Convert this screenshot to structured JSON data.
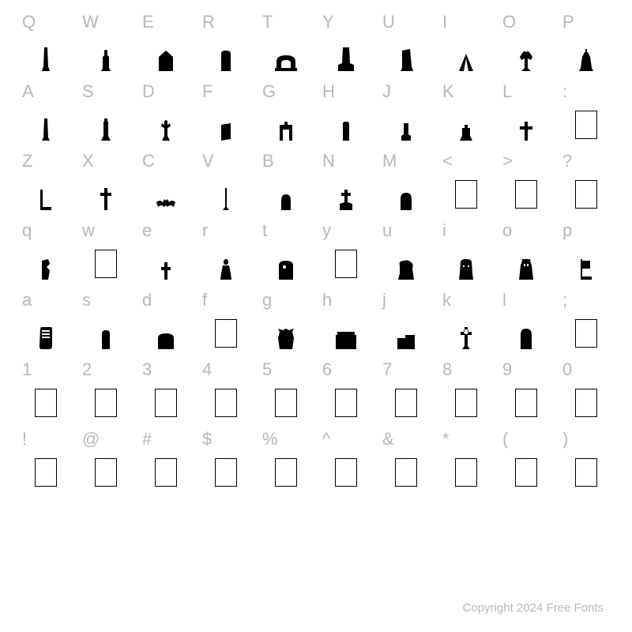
{
  "footer_text": "Copyright 2024 Free Fonts",
  "rows": [
    {
      "type": "label",
      "chars": [
        "Q",
        "W",
        "E",
        "R",
        "T",
        "Y",
        "U",
        "I",
        "O",
        "P"
      ]
    },
    {
      "type": "glyph",
      "glyphs": [
        "obelisk",
        "figure",
        "house",
        "tablet",
        "arch",
        "monument",
        "leaning",
        "tent",
        "angel",
        "bell"
      ]
    },
    {
      "type": "label",
      "chars": [
        "A",
        "S",
        "D",
        "F",
        "G",
        "H",
        "J",
        "K",
        "L",
        ":"
      ]
    },
    {
      "type": "glyph",
      "glyphs": [
        "pillar",
        "column",
        "statue",
        "book",
        "gate",
        "slab",
        "pedestal",
        "base",
        "cross-arm",
        "empty"
      ]
    },
    {
      "type": "label",
      "chars": [
        "Z",
        "X",
        "C",
        "V",
        "B",
        "N",
        "M",
        "<",
        ">",
        "?"
      ]
    },
    {
      "type": "glyph",
      "glyphs": [
        "post",
        "cross",
        "bat",
        "pole",
        "dome",
        "cross-grave",
        "round-top",
        "empty",
        "empty",
        "empty"
      ]
    },
    {
      "type": "label",
      "chars": [
        "q",
        "w",
        "e",
        "r",
        "t",
        "y",
        "u",
        "i",
        "o",
        "p"
      ]
    },
    {
      "type": "glyph",
      "glyphs": [
        "broken",
        "empty",
        "small-cross",
        "bust",
        "portrait",
        "empty",
        "rock",
        "face",
        "gargoyle",
        "flag"
      ]
    },
    {
      "type": "label",
      "chars": [
        "a",
        "s",
        "d",
        "f",
        "g",
        "h",
        "j",
        "k",
        "l",
        ";"
      ]
    },
    {
      "type": "glyph",
      "glyphs": [
        "scroll",
        "plain",
        "wide",
        "empty",
        "demon",
        "wall",
        "wall2",
        "celtic",
        "arch2",
        "empty"
      ]
    },
    {
      "type": "label",
      "chars": [
        "1",
        "2",
        "3",
        "4",
        "5",
        "6",
        "7",
        "8",
        "9",
        "0"
      ]
    },
    {
      "type": "glyph",
      "glyphs": [
        "empty",
        "empty",
        "empty",
        "empty",
        "empty",
        "empty",
        "empty",
        "empty",
        "empty",
        "empty"
      ]
    },
    {
      "type": "label",
      "chars": [
        "!",
        "@",
        "#",
        "$",
        "%",
        "^",
        "&",
        "*",
        "(",
        ")"
      ]
    },
    {
      "type": "glyph",
      "glyphs": [
        "empty",
        "empty",
        "empty",
        "empty",
        "empty",
        "empty",
        "empty",
        "empty",
        "empty",
        "empty"
      ]
    }
  ],
  "colors": {
    "label": "#b8b8b8",
    "glyph": "#000000",
    "background": "#ffffff"
  }
}
